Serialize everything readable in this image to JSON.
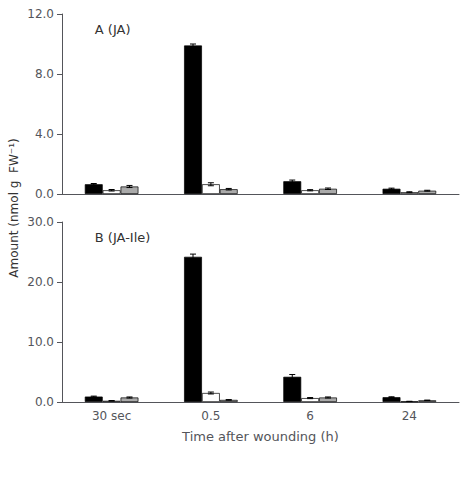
{
  "chart_data": [
    {
      "type": "bar",
      "title": "A (JA)",
      "ylabel": "Amount (nmol g  FW⁻¹)",
      "categories": [
        null,
        null,
        null,
        null
      ],
      "series": [
        {
          "color": "#000000",
          "values": [
            0.65,
            9.9,
            0.85,
            0.35
          ],
          "errors": [
            0.05,
            0.1,
            0.08,
            0.04
          ]
        },
        {
          "color": "#ffffff",
          "values": [
            0.25,
            0.65,
            0.25,
            0.12
          ],
          "errors": [
            0.05,
            0.1,
            0.04,
            0.03
          ]
        },
        {
          "color": "#aaaaaa",
          "values": [
            0.5,
            0.32,
            0.35,
            0.22
          ],
          "errors": [
            0.07,
            0.05,
            0.05,
            0.03
          ]
        }
      ],
      "ylim": [
        0,
        12.0
      ],
      "yticks": [
        {
          "value": 0,
          "label": "0.0"
        },
        {
          "value": 4,
          "label": "4.0"
        },
        {
          "value": 8,
          "label": "8.0"
        },
        {
          "value": 12,
          "label": "12.0"
        }
      ],
      "grid": false,
      "tick_labels": "y"
    },
    {
      "type": "bar",
      "title": "B (JA-Ile)",
      "xlabel": "Time after wounding (h)",
      "categories": [
        "30 sec",
        "0.5",
        "6",
        "24"
      ],
      "series": [
        {
          "color": "#000000",
          "values": [
            0.9,
            24.2,
            4.2,
            0.8
          ],
          "errors": [
            0.08,
            0.45,
            0.38,
            0.07
          ]
        },
        {
          "color": "#ffffff",
          "values": [
            0.2,
            1.5,
            0.65,
            0.1
          ],
          "errors": [
            0.04,
            0.16,
            0.09,
            0.02
          ]
        },
        {
          "color": "#aaaaaa",
          "values": [
            0.75,
            0.35,
            0.75,
            0.28
          ],
          "errors": [
            0.09,
            0.05,
            0.09,
            0.04
          ]
        }
      ],
      "ylim": [
        0,
        30.0
      ],
      "yticks": [
        {
          "value": 0,
          "label": "0.0"
        },
        {
          "value": 10,
          "label": "10.0"
        },
        {
          "value": 20,
          "label": "20.0"
        },
        {
          "value": 30,
          "label": "30.0"
        }
      ],
      "grid": false
    }
  ]
}
